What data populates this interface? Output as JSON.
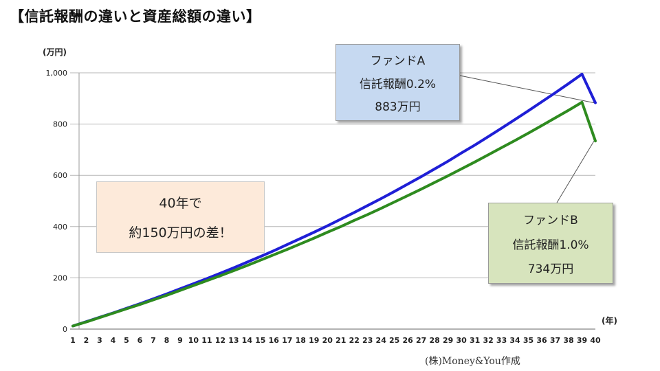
{
  "title": "【信託報酬の違いと資産総額の違い】",
  "credit": "(株)Money&You作成",
  "callouts": {
    "fund_a": {
      "line1": "ファンドA",
      "line2": "信託報酬0.2%",
      "line3": "883万円",
      "color": "#c6d9f1"
    },
    "fund_b": {
      "line1": "ファンドB",
      "line2": "信託報酬1.0%",
      "line3": "734万円",
      "color": "#d7e4bd"
    },
    "difference": {
      "line1": "40年で",
      "line2": "約150万円の差！",
      "color": "#fdeada"
    }
  },
  "chart_data": {
    "type": "line",
    "y_unit_label": "(万円)",
    "x_unit_label": "(年)",
    "xlim": [
      1,
      40
    ],
    "ylim": [
      0,
      1000
    ],
    "y_ticks": [
      0,
      200,
      400,
      600,
      800,
      1000
    ],
    "y_tick_labels": [
      "0",
      "200",
      "400",
      "600",
      "800",
      "1,000"
    ],
    "grid": "horizontal",
    "x": [
      1,
      2,
      3,
      4,
      5,
      6,
      7,
      8,
      9,
      10,
      11,
      12,
      13,
      14,
      15,
      16,
      17,
      18,
      19,
      20,
      21,
      22,
      23,
      24,
      25,
      26,
      27,
      28,
      29,
      30,
      31,
      32,
      33,
      34,
      35,
      36,
      37,
      38,
      39,
      40
    ],
    "x_tick_labels": [
      "1",
      "2",
      "3",
      "4",
      "5",
      "6",
      "7",
      "8",
      "9",
      "10",
      "11",
      "12",
      "13",
      "14",
      "15",
      "16",
      "17",
      "18",
      "19",
      "20",
      "21",
      "22",
      "23",
      "24",
      "25",
      "26",
      "27",
      "28",
      "29",
      "30",
      "31",
      "32",
      "33",
      "34",
      "35",
      "36",
      "37",
      "38",
      "39",
      "40"
    ],
    "series": [
      {
        "color": "#1f1fd6",
        "values": [
          12,
          29,
          46,
          63,
          81,
          99,
          118,
          137,
          157,
          177,
          197,
          218,
          239,
          261,
          283,
          306,
          330,
          354,
          378,
          403,
          429,
          455,
          482,
          509,
          537,
          566,
          595,
          625,
          655,
          687,
          718,
          751,
          784,
          818,
          852,
          887,
          922,
          958,
          995,
          883
        ]
      },
      {
        "color": "#2e8b1f",
        "values": [
          12,
          28,
          45,
          62,
          79,
          96,
          114,
          132,
          151,
          170,
          189,
          208,
          228,
          248,
          269,
          290,
          311,
          333,
          355,
          378,
          400,
          424,
          447,
          471,
          496,
          521,
          546,
          572,
          598,
          625,
          652,
          680,
          708,
          736,
          765,
          794,
          824,
          854,
          885,
          734
        ]
      }
    ]
  }
}
